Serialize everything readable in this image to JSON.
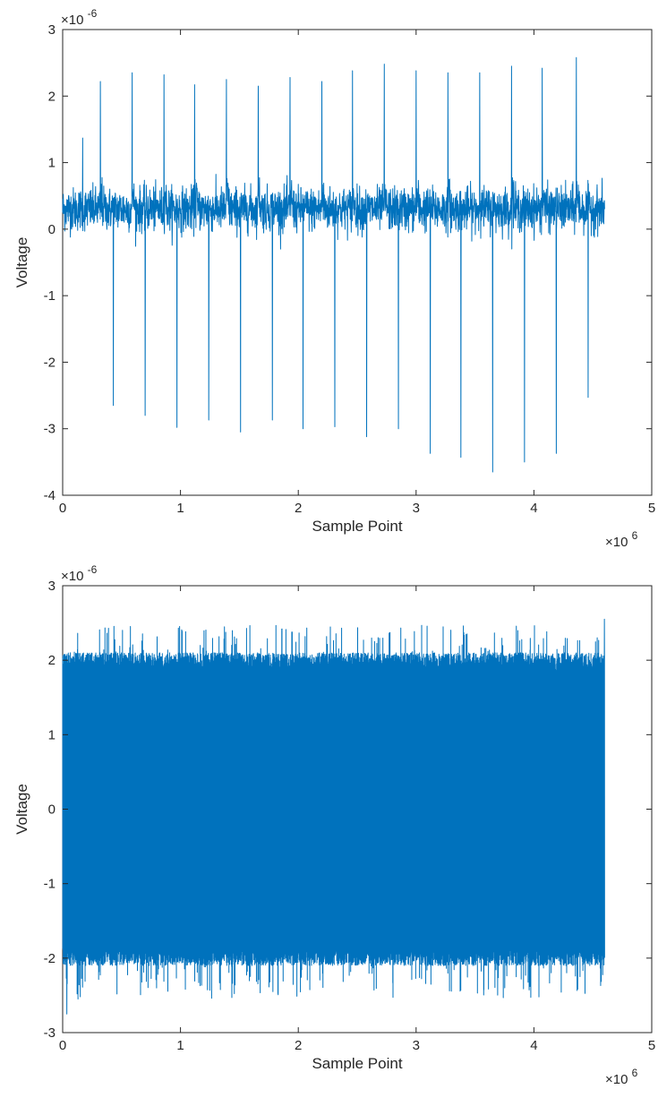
{
  "chart_data": [
    {
      "type": "line",
      "title": "",
      "xlabel": "Sample Point",
      "ylabel": "Voltage",
      "x_exponent": "×10",
      "x_exponent_power": "6",
      "y_exponent": "×10",
      "y_exponent_power": "-6",
      "xlim": [
        0,
        5
      ],
      "ylim": [
        -4,
        3
      ],
      "xticks": [
        "0",
        "1",
        "2",
        "3",
        "4",
        "5"
      ],
      "yticks": [
        "-4",
        "-3",
        "-2",
        "-1",
        "0",
        "1",
        "2",
        "3"
      ],
      "x_units": "x10^6 samples",
      "y_units": "x10^-6 V",
      "series_color": "#0072bd",
      "data_extent_x": [
        0,
        4.6
      ],
      "baseline_range": [
        -0.1,
        0.8
      ],
      "spike_x": [
        0.32,
        0.59,
        0.86,
        1.12,
        1.39,
        1.66,
        1.93,
        2.2,
        2.46,
        2.73,
        3.0,
        3.27,
        3.54,
        3.81,
        4.07,
        4.36
      ],
      "spike_peaks": [
        2.22,
        2.35,
        2.32,
        2.17,
        2.25,
        2.15,
        2.28,
        2.22,
        2.38,
        2.48,
        2.38,
        2.35,
        2.35,
        2.45,
        2.42,
        2.58
      ],
      "trough_x": [
        0.43,
        0.7,
        0.97,
        1.24,
        1.51,
        1.78,
        2.04,
        2.31,
        2.58,
        2.85,
        3.12,
        3.38,
        3.65,
        3.92,
        4.19,
        4.46
      ],
      "trough_values": [
        -2.65,
        -2.8,
        -2.98,
        -2.87,
        -3.05,
        -2.87,
        -3.0,
        -2.97,
        -3.12,
        -3.0,
        -3.37,
        -3.43,
        -3.65,
        -3.5,
        -3.37,
        -2.53
      ]
    },
    {
      "type": "line",
      "title": "",
      "xlabel": "Sample Point",
      "ylabel": "Voltage",
      "x_exponent": "×10",
      "x_exponent_power": "6",
      "y_exponent": "×10",
      "y_exponent_power": "-6",
      "xlim": [
        0,
        5
      ],
      "ylim": [
        -3,
        3
      ],
      "xticks": [
        "0",
        "1",
        "2",
        "3",
        "4",
        "5"
      ],
      "yticks": [
        "-3",
        "-2",
        "-1",
        "0",
        "1",
        "2",
        "3"
      ],
      "x_units": "x10^6 samples",
      "y_units": "x10^-6 V",
      "series_color": "#0072bd",
      "data_extent_x": [
        0,
        4.6
      ],
      "dense_band": [
        -1.85,
        1.85
      ],
      "envelope_max_range": [
        1.8,
        2.55
      ],
      "envelope_min_range": [
        -2.75,
        -1.8
      ]
    }
  ]
}
